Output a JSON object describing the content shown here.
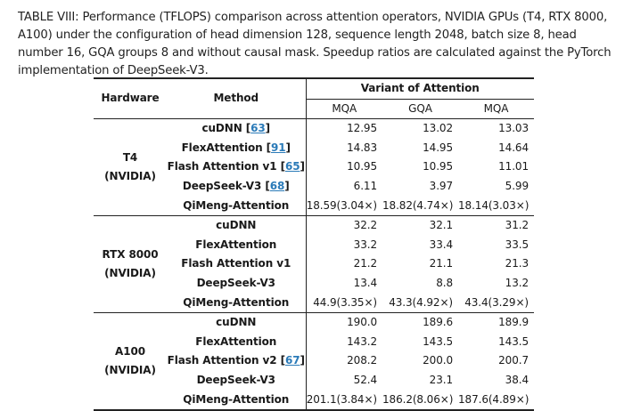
{
  "caption": "TABLE VIII: Performance (TFLOPS) comparison across attention operators, NVIDIA GPUs (T4, RTX 8000, A100) under the configuration of head dimension 128, sequence length 2048, batch size 8, head number 16, GQA groups 8 and without causal mask. Speedup ratios are calculated against the PyTorch implementation of DeepSeek-V3.",
  "headers": {
    "hardware": "Hardware",
    "method": "Method",
    "variant": "Variant of Attention",
    "variants": [
      "MQA",
      "GQA",
      "MQA"
    ]
  },
  "groups": [
    {
      "hw_line1": "T4",
      "hw_line2": "(NVIDIA)",
      "rows": [
        {
          "method": "cuDNN",
          "ref": "63",
          "v": [
            "12.95",
            "13.02",
            "13.03"
          ]
        },
        {
          "method": "FlexAttention",
          "ref": "91",
          "v": [
            "14.83",
            "14.95",
            "14.64"
          ]
        },
        {
          "method": "Flash Attention v1",
          "ref": "65",
          "v": [
            "10.95",
            "10.95",
            "11.01"
          ]
        },
        {
          "method": "DeepSeek-V3",
          "ref": "68",
          "v": [
            "6.11",
            "3.97",
            "5.99"
          ]
        },
        {
          "method": "QiMeng-Attention",
          "ref": "",
          "v": [
            "18.59(3.04×)",
            "18.82(4.74×)",
            "18.14(3.03×)"
          ]
        }
      ]
    },
    {
      "hw_line1": "RTX 8000",
      "hw_line2": "(NVIDIA)",
      "rows": [
        {
          "method": "cuDNN",
          "ref": "",
          "v": [
            "32.2",
            "32.1",
            "31.2"
          ]
        },
        {
          "method": "FlexAttention",
          "ref": "",
          "v": [
            "33.2",
            "33.4",
            "33.5"
          ]
        },
        {
          "method": "Flash Attention v1",
          "ref": "",
          "v": [
            "21.2",
            "21.1",
            "21.3"
          ]
        },
        {
          "method": "DeepSeek-V3",
          "ref": "",
          "v": [
            "13.4",
            "8.8",
            "13.2"
          ]
        },
        {
          "method": "QiMeng-Attention",
          "ref": "",
          "v": [
            "44.9(3.35×)",
            "43.3(4.92×)",
            "43.4(3.29×)"
          ]
        }
      ]
    },
    {
      "hw_line1": "A100",
      "hw_line2": "(NVIDIA)",
      "rows": [
        {
          "method": "cuDNN",
          "ref": "",
          "v": [
            "190.0",
            "189.6",
            "189.9"
          ]
        },
        {
          "method": "FlexAttention",
          "ref": "",
          "v": [
            "143.2",
            "143.5",
            "143.5"
          ]
        },
        {
          "method": "Flash Attention v2",
          "ref": "67",
          "v": [
            "208.2",
            "200.0",
            "200.7"
          ]
        },
        {
          "method": "DeepSeek-V3",
          "ref": "",
          "v": [
            "52.4",
            "23.1",
            "38.4"
          ]
        },
        {
          "method": "QiMeng-Attention",
          "ref": "",
          "v": [
            "201.1(3.84×)",
            "186.2(8.06×)",
            "187.6(4.89×)"
          ]
        }
      ]
    }
  ]
}
